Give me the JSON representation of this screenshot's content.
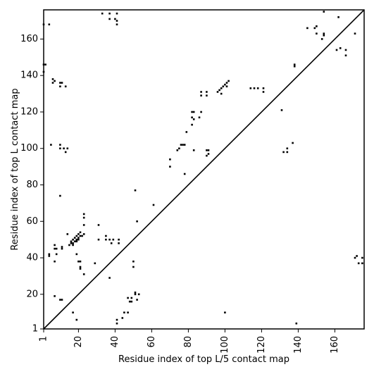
{
  "chart_data": {
    "type": "heatmap",
    "title": "",
    "xlabel": "Residue index of top L/5 contact map",
    "ylabel": "Residue index of top L contact map",
    "xlim": [
      1,
      176
    ],
    "ylim": [
      1,
      176
    ],
    "xticks": [
      1,
      20,
      40,
      60,
      80,
      100,
      120,
      140,
      160
    ],
    "yticks": [
      1,
      20,
      40,
      60,
      80,
      100,
      120,
      140,
      160
    ],
    "xtick_labels": [
      "1",
      "20",
      "40",
      "60",
      "80",
      "100",
      "120",
      "140",
      "160"
    ],
    "ytick_labels": [
      "1",
      "20",
      "40",
      "60",
      "80",
      "100",
      "120",
      "140",
      "160"
    ],
    "diagonal": true,
    "cell_color": "#000000",
    "grid": false,
    "points": [
      [
        1,
        168
      ],
      [
        1,
        146
      ],
      [
        2,
        146
      ],
      [
        1,
        142
      ],
      [
        4,
        168
      ],
      [
        6,
        138
      ],
      [
        6,
        136
      ],
      [
        7,
        137
      ],
      [
        10,
        136
      ],
      [
        11,
        136
      ],
      [
        10,
        134
      ],
      [
        13,
        134
      ],
      [
        5,
        102
      ],
      [
        10,
        102
      ],
      [
        10,
        100
      ],
      [
        12,
        100
      ],
      [
        13,
        98
      ],
      [
        14,
        100
      ],
      [
        10,
        74
      ],
      [
        33,
        174
      ],
      [
        37,
        174
      ],
      [
        41,
        174
      ],
      [
        37,
        171
      ],
      [
        40,
        171
      ],
      [
        41,
        170
      ],
      [
        41,
        168
      ],
      [
        145,
        166
      ],
      [
        149,
        166
      ],
      [
        150,
        167
      ],
      [
        150,
        163
      ],
      [
        154,
        163
      ],
      [
        154,
        162
      ],
      [
        153,
        160
      ],
      [
        154,
        175
      ],
      [
        162,
        172
      ],
      [
        161,
        154
      ],
      [
        163,
        155
      ],
      [
        166,
        154
      ],
      [
        166,
        151
      ],
      [
        171,
        163
      ],
      [
        138,
        146
      ],
      [
        138,
        145
      ],
      [
        82,
        120
      ],
      [
        83,
        120
      ],
      [
        87,
        120
      ],
      [
        86,
        117
      ],
      [
        82,
        117
      ],
      [
        83,
        116
      ],
      [
        82,
        113
      ],
      [
        79,
        109
      ],
      [
        83,
        99
      ],
      [
        87,
        131
      ],
      [
        90,
        131
      ],
      [
        87,
        129
      ],
      [
        90,
        129
      ],
      [
        96,
        131
      ],
      [
        97,
        132
      ],
      [
        98,
        133
      ],
      [
        99,
        134
      ],
      [
        100,
        135
      ],
      [
        101,
        136
      ],
      [
        102,
        137
      ],
      [
        98,
        130
      ],
      [
        101,
        134
      ],
      [
        114,
        133
      ],
      [
        116,
        133
      ],
      [
        118,
        133
      ],
      [
        121,
        133
      ],
      [
        121,
        131
      ],
      [
        131,
        121
      ],
      [
        132,
        98
      ],
      [
        134,
        100
      ],
      [
        134,
        98
      ],
      [
        137,
        103
      ],
      [
        90,
        99
      ],
      [
        91,
        99
      ],
      [
        90,
        96
      ],
      [
        91,
        97
      ],
      [
        74,
        99
      ],
      [
        75,
        100
      ],
      [
        76,
        102
      ],
      [
        77,
        102
      ],
      [
        78,
        102
      ],
      [
        70,
        94
      ],
      [
        70,
        90
      ],
      [
        78,
        86
      ],
      [
        61,
        69
      ],
      [
        51,
        77
      ],
      [
        52,
        60
      ],
      [
        14,
        53
      ],
      [
        16,
        49
      ],
      [
        17,
        50
      ],
      [
        18,
        51
      ],
      [
        19,
        52
      ],
      [
        20,
        53
      ],
      [
        21,
        54
      ],
      [
        22,
        52
      ],
      [
        16,
        48
      ],
      [
        17,
        48
      ],
      [
        18,
        49
      ],
      [
        19,
        50
      ],
      [
        20,
        51
      ],
      [
        21,
        52
      ],
      [
        15,
        47
      ],
      [
        17,
        47
      ],
      [
        19,
        49
      ],
      [
        20,
        50
      ],
      [
        23,
        64
      ],
      [
        23,
        62
      ],
      [
        23,
        58
      ],
      [
        23,
        53
      ],
      [
        31,
        58
      ],
      [
        31,
        50
      ],
      [
        35,
        52
      ],
      [
        35,
        50
      ],
      [
        37,
        50
      ],
      [
        39,
        50
      ],
      [
        38,
        48
      ],
      [
        42,
        50
      ],
      [
        42,
        48
      ],
      [
        7,
        47
      ],
      [
        7,
        45
      ],
      [
        8,
        45
      ],
      [
        11,
        46
      ],
      [
        11,
        45
      ],
      [
        4,
        42
      ],
      [
        4,
        41
      ],
      [
        8,
        42
      ],
      [
        7,
        38
      ],
      [
        19,
        42
      ],
      [
        20,
        38
      ],
      [
        21,
        38
      ],
      [
        21,
        35
      ],
      [
        21,
        34
      ],
      [
        23,
        31
      ],
      [
        29,
        37
      ],
      [
        37,
        29
      ],
      [
        7,
        19
      ],
      [
        10,
        17
      ],
      [
        11,
        17
      ],
      [
        17,
        10
      ],
      [
        19,
        6
      ],
      [
        41,
        6
      ],
      [
        41,
        4
      ],
      [
        44,
        7
      ],
      [
        45,
        10
      ],
      [
        47,
        10
      ],
      [
        48,
        16
      ],
      [
        47,
        18
      ],
      [
        49,
        18
      ],
      [
        49,
        16
      ],
      [
        50,
        38
      ],
      [
        50,
        35
      ],
      [
        51,
        21
      ],
      [
        51,
        20
      ],
      [
        52,
        17
      ],
      [
        53,
        20
      ],
      [
        100,
        10
      ],
      [
        139,
        4
      ],
      [
        171,
        40
      ],
      [
        172,
        41
      ],
      [
        173,
        37
      ],
      [
        175,
        40
      ],
      [
        175,
        37
      ]
    ]
  }
}
